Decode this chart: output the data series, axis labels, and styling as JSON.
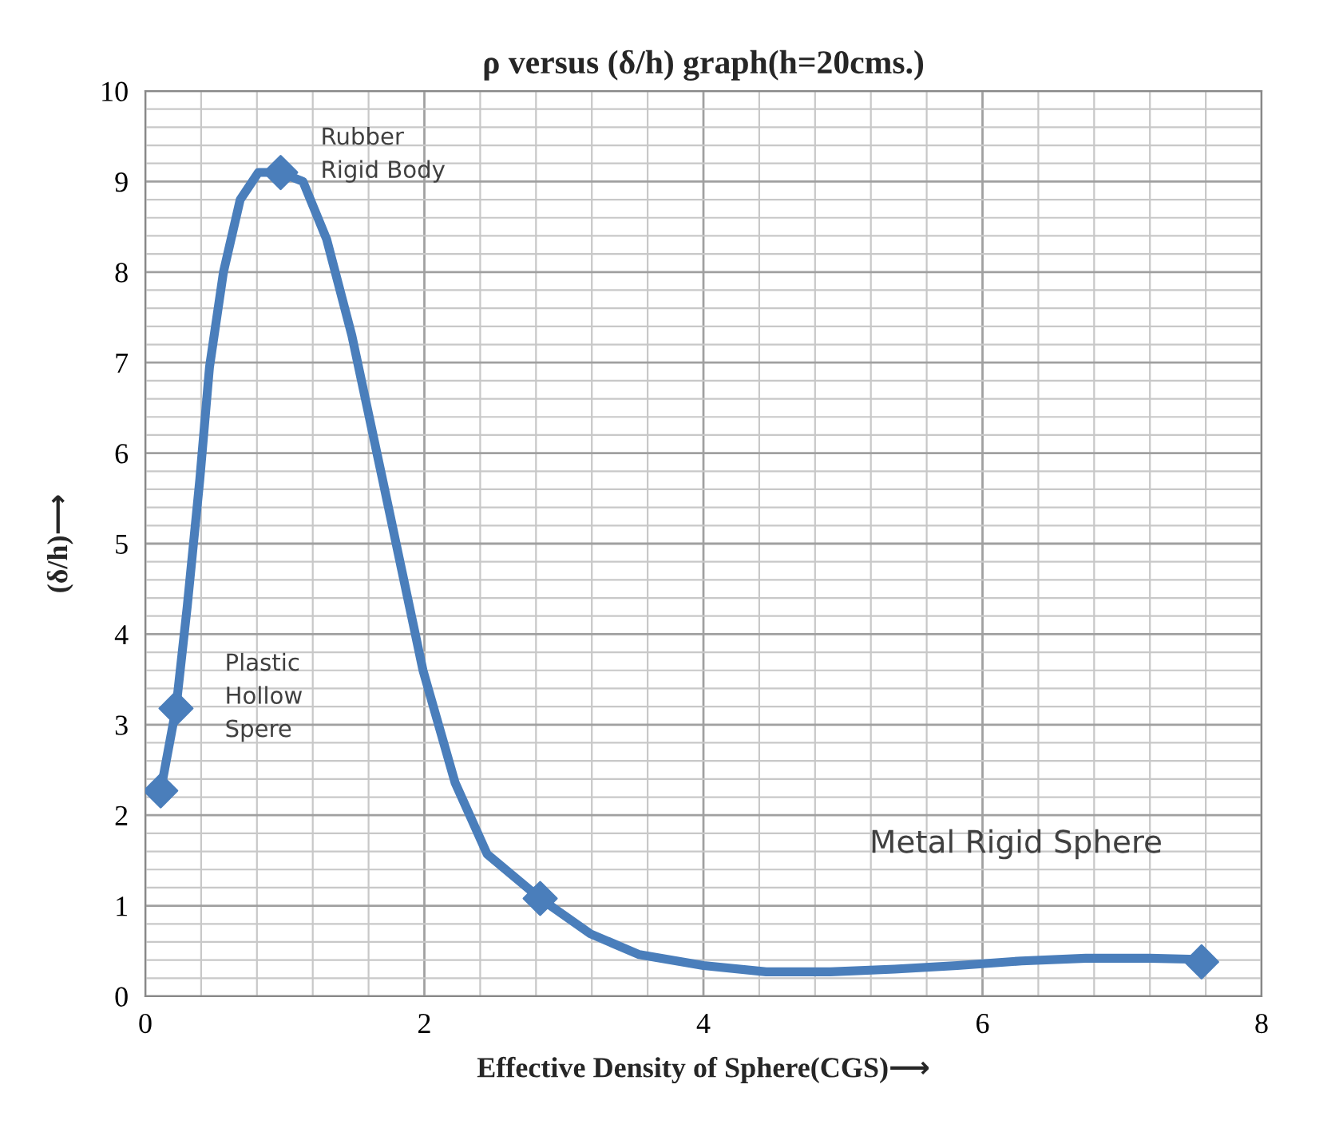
{
  "chart_data": {
    "type": "line",
    "title": "ρ versus (δ/h) graph(h=20cms.)",
    "xlabel": "Effective Density of Sphere(CGS)⟶",
    "ylabel": "(δ/h)⟶",
    "x": [
      0.11,
      0.22,
      0.97,
      2.83,
      7.57
    ],
    "series": [
      {
        "color": "#4a7ebb",
        "marker": "none",
        "x": [
          0.11,
          0.22,
          0.3,
          0.39,
          0.46,
          0.56,
          0.68,
          0.81,
          0.97,
          1.13,
          1.3,
          1.48,
          1.7,
          1.99,
          2.22,
          2.45,
          2.83,
          3.19,
          3.54,
          4.0,
          4.45,
          4.91,
          5.37,
          5.82,
          6.28,
          6.74,
          7.2,
          7.48,
          7.57
        ],
        "values": [
          2.27,
          3.18,
          4.3,
          5.7,
          6.95,
          8.0,
          8.8,
          9.1,
          9.1,
          9.0,
          8.36,
          7.3,
          5.71,
          3.6,
          2.36,
          1.57,
          1.08,
          0.69,
          0.46,
          0.34,
          0.27,
          0.27,
          0.3,
          0.34,
          0.39,
          0.42,
          0.42,
          0.41,
          0.38
        ]
      },
      {
        "type": "scatter",
        "color": "#4a7ebb",
        "marker": "diamond",
        "values": [
          2.27,
          3.18,
          9.1,
          1.08,
          0.38
        ]
      }
    ],
    "xlim": [
      0,
      8
    ],
    "xticks": [
      0,
      2,
      4,
      6,
      8
    ],
    "ylim": [
      0,
      10
    ],
    "yticks": [
      0,
      1,
      2,
      3,
      4,
      5,
      6,
      7,
      8,
      9,
      10
    ],
    "grid": true,
    "line_style": "solid",
    "annotations": [
      {
        "text": "Rubber\nRigid Body",
        "x": 0.97,
        "y": 9.1
      },
      {
        "text": "Plastic\nHollow\nSpere",
        "x": 0.22,
        "y": 3.18
      },
      "Metal Rigid Sphere"
    ]
  }
}
